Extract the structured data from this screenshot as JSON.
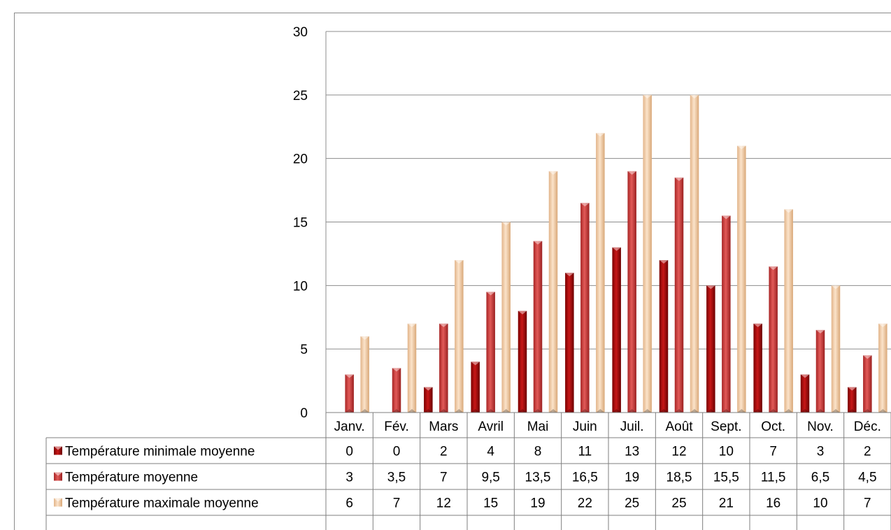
{
  "chart_data": {
    "type": "bar",
    "categories": [
      "Janv.",
      "Fév.",
      "Mars",
      "Avril",
      "Mai",
      "Juin",
      "Juil.",
      "Août",
      "Sept.",
      "Oct.",
      "Nov.",
      "Déc."
    ],
    "series": [
      {
        "name": "Température minimale moyenne",
        "labels": [
          "0",
          "0",
          "2",
          "4",
          "8",
          "11",
          "13",
          "12",
          "10",
          "7",
          "3",
          "2"
        ],
        "values": [
          0,
          0,
          2,
          4,
          8,
          11,
          13,
          12,
          10,
          7,
          3,
          2
        ],
        "color": "#a50f0f"
      },
      {
        "name": "Température moyenne",
        "labels": [
          "3",
          "3,5",
          "7",
          "9,5",
          "13,5",
          "16,5",
          "19",
          "18,5",
          "15,5",
          "11,5",
          "6,5",
          "4,5"
        ],
        "values": [
          3,
          3.5,
          7,
          9.5,
          13.5,
          16.5,
          19,
          18.5,
          15.5,
          11.5,
          6.5,
          4.5
        ],
        "color": "#d0403e"
      },
      {
        "name": "Température maximale moyenne",
        "labels": [
          "6",
          "7",
          "12",
          "15",
          "19",
          "22",
          "25",
          "25",
          "21",
          "16",
          "10",
          "7"
        ],
        "values": [
          6,
          7,
          12,
          15,
          19,
          22,
          25,
          25,
          21,
          16,
          10,
          7
        ],
        "color": "#f3cba3"
      }
    ],
    "y_ticks": [
      "0",
      "5",
      "10",
      "15",
      "20",
      "25",
      "30"
    ],
    "ylim": [
      0,
      30
    ],
    "grid": true,
    "legend": "data-table",
    "title": "",
    "xlabel": "",
    "ylabel": ""
  }
}
